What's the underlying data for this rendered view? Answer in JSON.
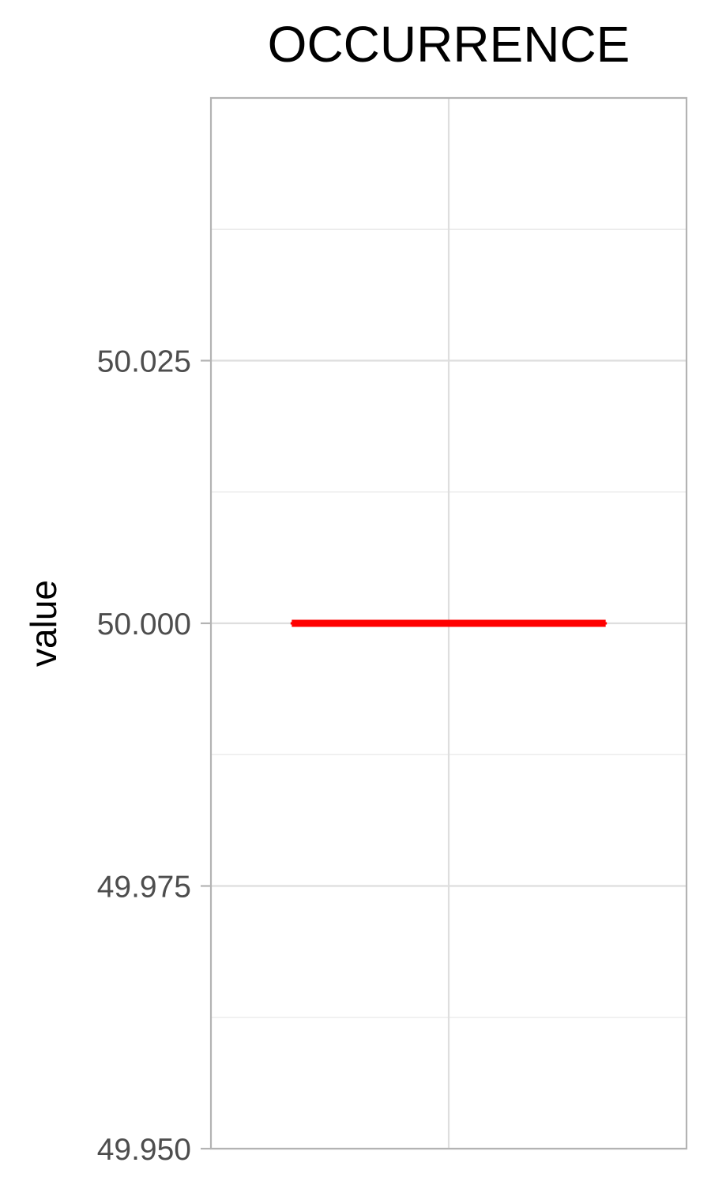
{
  "chart_data": {
    "type": "boxplot",
    "title": "OCCURRENCE",
    "xlabel": "",
    "ylabel": "value",
    "ylim": [
      49.95,
      50.05
    ],
    "yticks": [
      {
        "value": 49.95,
        "label": "49.950"
      },
      {
        "value": 49.975,
        "label": "49.975"
      },
      {
        "value": 50.0,
        "label": "50.000"
      },
      {
        "value": 50.025,
        "label": "50.025"
      }
    ],
    "minor_yticks": [
      49.9625,
      49.9875,
      50.0125,
      50.0375
    ],
    "grid": true,
    "series": [
      {
        "min": 50.0,
        "q1": 50.0,
        "median": 50.0,
        "q3": 50.0,
        "max": 50.0,
        "color": "#ff0000"
      }
    ],
    "colors": {
      "panel_border": "#b3b3b3",
      "major_grid": "#dedede",
      "minor_grid": "#ececec",
      "tick_text": "#4d4d4d",
      "box": "#ff0000"
    }
  }
}
